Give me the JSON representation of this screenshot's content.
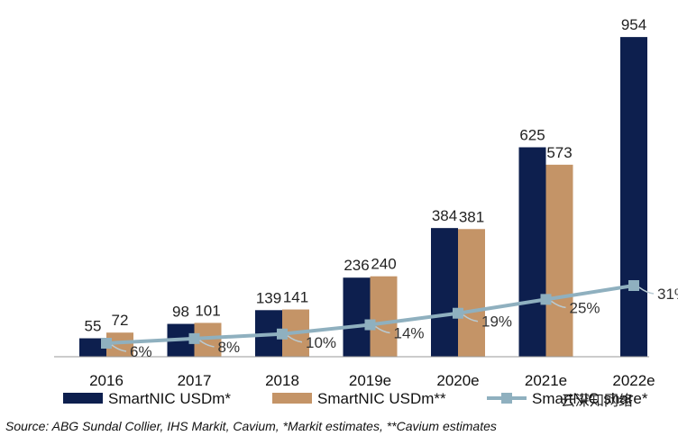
{
  "chart_data": {
    "type": "bar",
    "categories": [
      "2016",
      "2017",
      "2018",
      "2019e",
      "2020e",
      "2021e",
      "2022e"
    ],
    "series": [
      {
        "name": "SmartNIC USDm*",
        "type": "bar",
        "color": "#0d1f4e",
        "values": [
          55,
          98,
          139,
          236,
          384,
          625,
          954
        ]
      },
      {
        "name": "SmartNIC USDm**",
        "type": "bar",
        "color": "#c49467",
        "values": [
          72,
          101,
          141,
          240,
          381,
          573,
          null
        ]
      },
      {
        "name": "SmartNIC share*",
        "type": "line",
        "color": "#8fb0bf",
        "values": [
          6,
          8,
          10,
          14,
          19,
          25,
          31
        ],
        "label_suffix": "%"
      }
    ],
    "ylim": [
      0,
      1000
    ],
    "share_ylim": [
      0,
      100
    ],
    "grid": false,
    "legend_position": "bottom",
    "source": "Source: ABG Sundal Collier, IHS Markit, Cavium, *Markit estimates, **Cavium estimates",
    "watermark_right": "云深知网络"
  }
}
